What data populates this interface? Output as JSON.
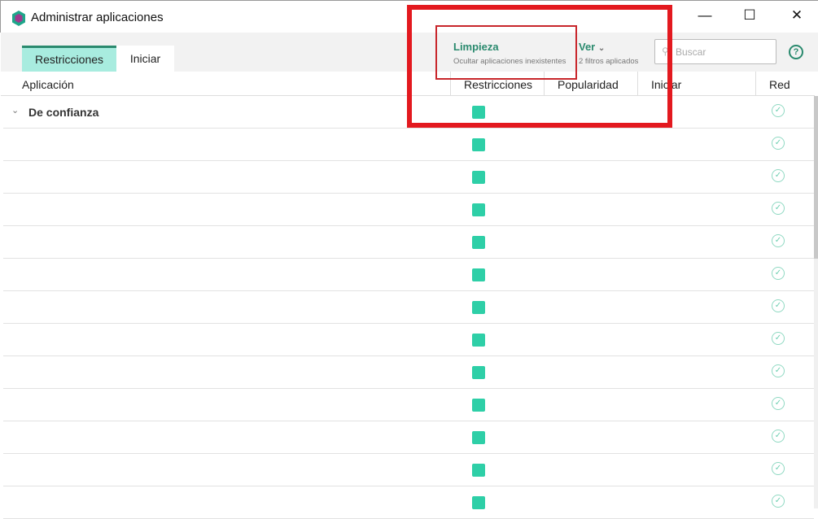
{
  "window": {
    "title": "Administrar aplicaciones",
    "minimize": "—",
    "maximize": "☐",
    "close": "✕"
  },
  "tabs": [
    {
      "label": "Restricciones",
      "active": true
    },
    {
      "label": "Iniciar",
      "active": false
    }
  ],
  "toolbar": {
    "cleanup_label": "Limpieza",
    "cleanup_sub": "Ocultar aplicaciones inexistentes",
    "view_label": "Ver",
    "view_chevron": "⌄",
    "view_sub": "2 filtros aplicados",
    "search_placeholder": "Buscar",
    "help": "?"
  },
  "columns": [
    "Aplicación",
    "Restricciones",
    "Popularidad",
    "Iniciar",
    "Red"
  ],
  "group": {
    "label": "De confianza",
    "chevron": "⌄"
  },
  "colors": {
    "accent": "#2a8a6e",
    "restriction_square": "#2ecfa7",
    "highlight": "#e3191f"
  },
  "rows_count_visible": 13
}
